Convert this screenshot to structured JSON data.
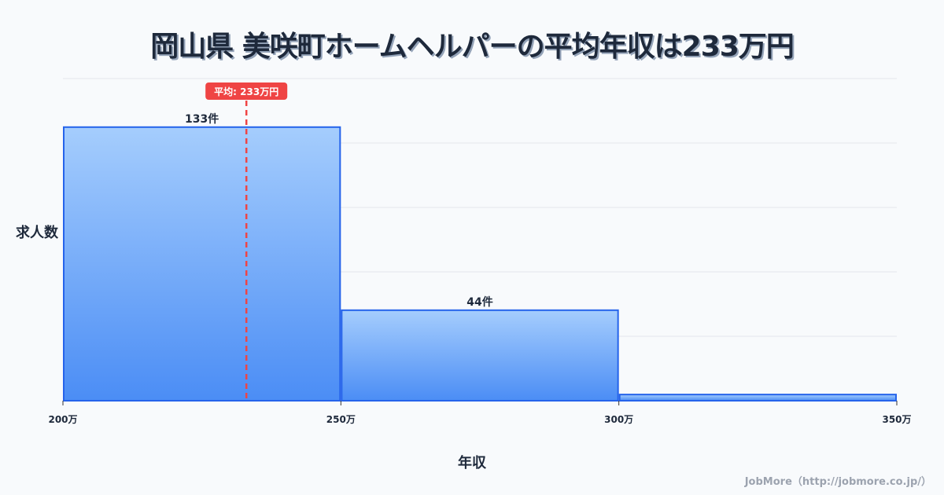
{
  "chart_data": {
    "type": "bar",
    "title": "岡山県 美咲町ホームヘルパーの平均年収は233万円",
    "xlabel": "年収",
    "ylabel": "求人数",
    "bins": [
      [
        200,
        250
      ],
      [
        250,
        300
      ],
      [
        300,
        350
      ]
    ],
    "values": [
      133,
      44,
      3
    ],
    "data_labels": [
      "133件",
      "44件",
      ""
    ],
    "x_ticks": [
      200,
      250,
      300,
      350
    ],
    "x_tick_labels": [
      "200万",
      "250万",
      "300万",
      "350万"
    ],
    "xlim": [
      200,
      350
    ],
    "ylim": [
      0,
      156.6
    ],
    "grid": true,
    "mean": 233,
    "mean_label": "平均: 233万円"
  },
  "colors": {
    "bar_top": "#a5cdfd",
    "bar_bottom": "#4b8df5",
    "bar_stroke": "#2563eb",
    "mean": "#ef4444"
  },
  "credit": "JobMore（http://jobmore.co.jp/）"
}
